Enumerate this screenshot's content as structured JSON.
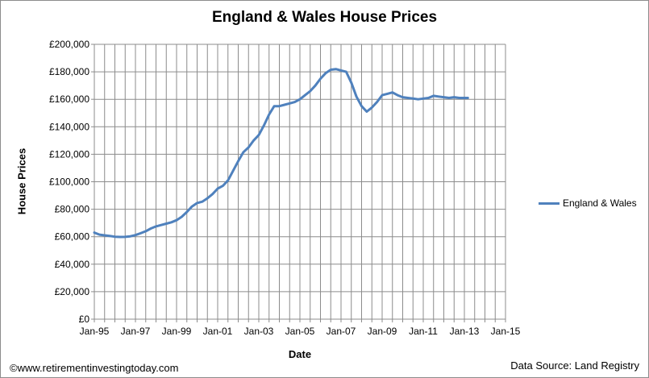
{
  "chart_data": {
    "type": "line",
    "title": "England & Wales House Prices",
    "xlabel": "Date",
    "ylabel": "House Prices",
    "xlim": [
      "1995-01",
      "2015-01"
    ],
    "ylim": [
      0,
      200000
    ],
    "y_tick_labels": [
      "£0",
      "£20,000",
      "£40,000",
      "£60,000",
      "£80,000",
      "£100,000",
      "£120,000",
      "£140,000",
      "£160,000",
      "£180,000",
      "£200,000"
    ],
    "x_tick_labels": [
      "Jan-95",
      "Jan-97",
      "Jan-99",
      "Jan-01",
      "Jan-03",
      "Jan-05",
      "Jan-07",
      "Jan-09",
      "Jan-11",
      "Jan-13",
      "Jan-15"
    ],
    "grid": true,
    "legend_position": "right",
    "series": [
      {
        "name": "England & Wales",
        "color": "#4f81bd",
        "x": [
          "1995-01",
          "1995-04",
          "1995-07",
          "1995-10",
          "1996-01",
          "1996-04",
          "1996-07",
          "1996-10",
          "1997-01",
          "1997-04",
          "1997-07",
          "1997-10",
          "1998-01",
          "1998-04",
          "1998-07",
          "1998-10",
          "1999-01",
          "1999-04",
          "1999-07",
          "1999-10",
          "2000-01",
          "2000-04",
          "2000-07",
          "2000-10",
          "2001-01",
          "2001-04",
          "2001-07",
          "2001-10",
          "2002-01",
          "2002-04",
          "2002-07",
          "2002-10",
          "2003-01",
          "2003-04",
          "2003-07",
          "2003-10",
          "2004-01",
          "2004-04",
          "2004-07",
          "2004-10",
          "2005-01",
          "2005-04",
          "2005-07",
          "2005-10",
          "2006-01",
          "2006-04",
          "2006-07",
          "2006-10",
          "2007-01",
          "2007-04",
          "2007-07",
          "2007-10",
          "2008-01",
          "2008-04",
          "2008-07",
          "2008-10",
          "2009-01",
          "2009-04",
          "2009-07",
          "2009-10",
          "2010-01",
          "2010-04",
          "2010-07",
          "2010-10",
          "2011-01",
          "2011-04",
          "2011-07",
          "2011-10",
          "2012-01",
          "2012-04",
          "2012-07",
          "2012-10",
          "2013-01",
          "2013-03"
        ],
        "values": [
          63000,
          61500,
          61000,
          60500,
          60000,
          59800,
          59900,
          60300,
          61200,
          62500,
          64000,
          66000,
          67500,
          68500,
          69500,
          70500,
          72000,
          74500,
          78000,
          82000,
          84500,
          85500,
          88000,
          91000,
          95000,
          97000,
          101000,
          108000,
          115000,
          121500,
          125000,
          130000,
          134000,
          141000,
          149000,
          155000,
          155000,
          156000,
          157000,
          158000,
          160000,
          163000,
          166000,
          170000,
          175000,
          179000,
          181500,
          182000,
          181000,
          180000,
          172000,
          162000,
          155000,
          151000,
          154000,
          158000,
          163000,
          164000,
          165000,
          163000,
          161500,
          161000,
          160500,
          160000,
          160500,
          161000,
          162500,
          162000,
          161500,
          161000,
          161500,
          161000,
          161000,
          161000
        ]
      }
    ]
  },
  "footer": {
    "copyright": "©www.retirementinvestingtoday.com",
    "source": "Data Source: Land Registry"
  }
}
